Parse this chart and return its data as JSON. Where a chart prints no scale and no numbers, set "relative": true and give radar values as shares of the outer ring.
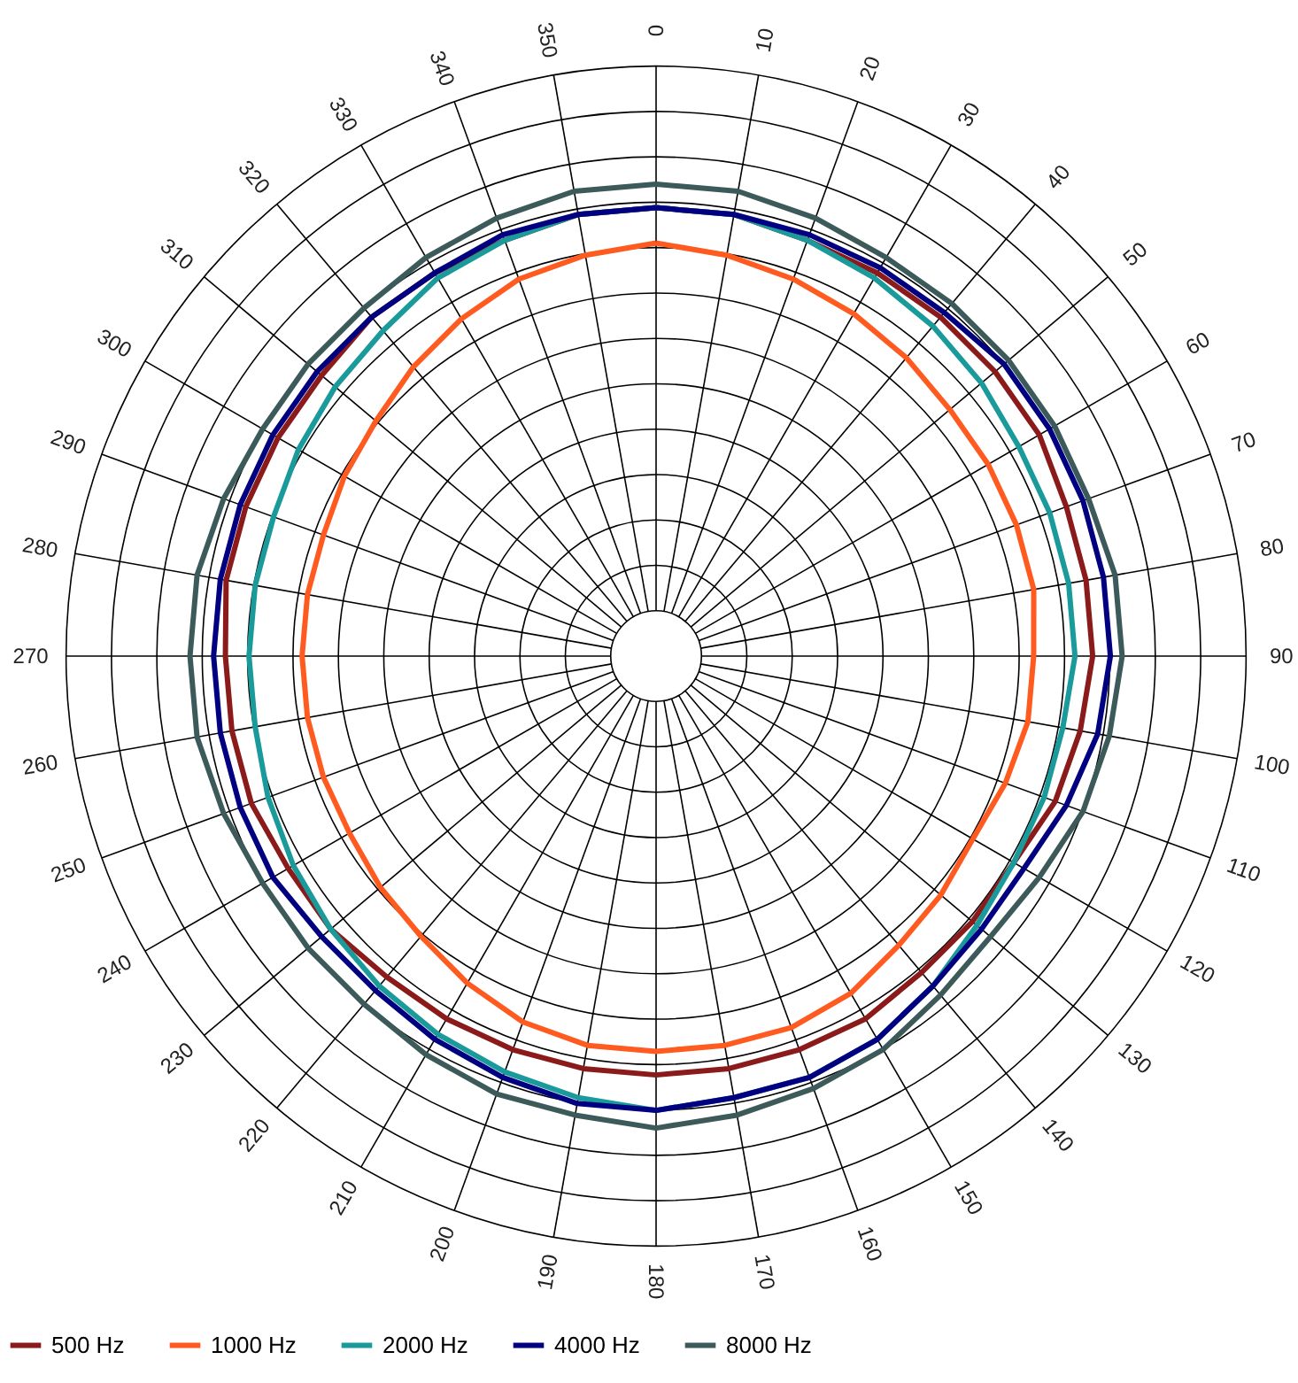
{
  "chart_data": {
    "type": "radar",
    "relative": true,
    "grid": true,
    "legend": "bottom",
    "line_style": "solid",
    "marker": "none",
    "categories": [
      "0",
      "10",
      "20",
      "30",
      "40",
      "50",
      "60",
      "70",
      "80",
      "90",
      "100",
      "110",
      "120",
      "130",
      "140",
      "150",
      "160",
      "170",
      "180",
      "190",
      "200",
      "210",
      "220",
      "230",
      "240",
      "250",
      "260",
      "270",
      "280",
      "290",
      "300",
      "310",
      "320",
      "330",
      "340",
      "350"
    ],
    "series": [
      {
        "name": "500 Hz",
        "color": "#8b1a1a",
        "values": [
          0.76,
          0.76,
          0.75,
          0.75,
          0.75,
          0.75,
          0.75,
          0.74,
          0.74,
          0.74,
          0.73,
          0.72,
          0.7,
          0.7,
          0.7,
          0.71,
          0.71,
          0.71,
          0.71,
          0.71,
          0.71,
          0.71,
          0.71,
          0.72,
          0.72,
          0.73,
          0.73,
          0.73,
          0.74,
          0.74,
          0.74,
          0.74,
          0.75,
          0.75,
          0.75,
          0.76
        ]
      },
      {
        "name": "1000 Hz",
        "color": "#ff5a1f",
        "values": [
          0.7,
          0.69,
          0.68,
          0.67,
          0.66,
          0.65,
          0.65,
          0.65,
          0.65,
          0.64,
          0.64,
          0.63,
          0.62,
          0.63,
          0.64,
          0.66,
          0.67,
          0.67,
          0.67,
          0.67,
          0.66,
          0.64,
          0.62,
          0.61,
          0.6,
          0.6,
          0.6,
          0.6,
          0.6,
          0.6,
          0.61,
          0.62,
          0.64,
          0.66,
          0.68,
          0.69
        ]
      },
      {
        "name": "2000 Hz",
        "color": "#1a9a9a",
        "values": [
          0.76,
          0.76,
          0.75,
          0.74,
          0.73,
          0.72,
          0.71,
          0.71,
          0.71,
          0.71,
          0.7,
          0.7,
          0.7,
          0.71,
          0.73,
          0.75,
          0.76,
          0.76,
          0.77,
          0.76,
          0.75,
          0.74,
          0.73,
          0.72,
          0.71,
          0.7,
          0.69,
          0.69,
          0.69,
          0.69,
          0.7,
          0.71,
          0.72,
          0.74,
          0.75,
          0.76
        ]
      },
      {
        "name": "4000 Hz",
        "color": "#000080",
        "values": [
          0.76,
          0.76,
          0.76,
          0.76,
          0.76,
          0.77,
          0.77,
          0.77,
          0.77,
          0.77,
          0.76,
          0.74,
          0.72,
          0.72,
          0.73,
          0.75,
          0.76,
          0.76,
          0.77,
          0.77,
          0.76,
          0.75,
          0.74,
          0.74,
          0.75,
          0.75,
          0.75,
          0.75,
          0.75,
          0.75,
          0.75,
          0.75,
          0.75,
          0.75,
          0.76,
          0.76
        ]
      },
      {
        "name": "8000 Hz",
        "color": "#3d5a5a",
        "values": [
          0.8,
          0.8,
          0.79,
          0.78,
          0.78,
          0.78,
          0.78,
          0.78,
          0.79,
          0.79,
          0.78,
          0.77,
          0.75,
          0.74,
          0.75,
          0.77,
          0.78,
          0.79,
          0.8,
          0.79,
          0.79,
          0.78,
          0.77,
          0.77,
          0.77,
          0.78,
          0.79,
          0.79,
          0.79,
          0.78,
          0.77,
          0.77,
          0.77,
          0.78,
          0.79,
          0.8
        ]
      }
    ]
  }
}
